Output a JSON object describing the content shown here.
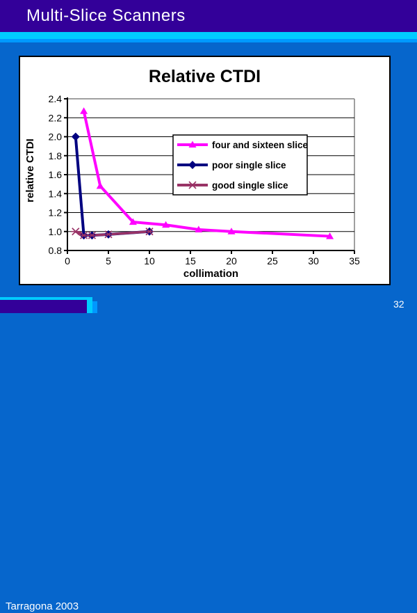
{
  "slide": {
    "title": "Multi-Slice Scanners",
    "footer": "Tarragona 2003",
    "page_number": "32"
  },
  "colors": {
    "background": "#0666CC",
    "title_bar": "#330099",
    "stripe_cyan": "#00CCFF",
    "stripe_blue": "#0099FF",
    "chart_background": "#FFFFFF",
    "gridline": "#000000",
    "plot_border": "#808080"
  },
  "chart_data": {
    "type": "line",
    "title": "Relative CTDI",
    "xlabel": "collimation",
    "ylabel": "relative CTDI",
    "xlim": [
      0,
      35
    ],
    "ylim": [
      0.8,
      2.4
    ],
    "x_ticks": [
      0,
      5,
      10,
      15,
      20,
      25,
      30,
      35
    ],
    "y_ticks": [
      0.8,
      1.0,
      1.2,
      1.4,
      1.6,
      1.8,
      2.0,
      2.2,
      2.4
    ],
    "grid": true,
    "legend_position": "upper-right-inside",
    "series": [
      {
        "name": "four and sixteen slice",
        "color": "#FF00FF",
        "marker": "triangle",
        "points": [
          [
            2,
            2.27
          ],
          [
            4,
            1.48
          ],
          [
            8,
            1.1
          ],
          [
            12,
            1.07
          ],
          [
            16,
            1.02
          ],
          [
            20,
            1.0
          ],
          [
            32,
            0.95
          ]
        ]
      },
      {
        "name": "poor single slice",
        "color": "#000080",
        "marker": "diamond",
        "points": [
          [
            1,
            2.0
          ],
          [
            2,
            0.96
          ],
          [
            3,
            0.96
          ],
          [
            5,
            0.97
          ],
          [
            10,
            1.0
          ]
        ]
      },
      {
        "name": "good single slice",
        "color": "#993366",
        "marker": "star",
        "points": [
          [
            1,
            1.0
          ],
          [
            2,
            0.96
          ],
          [
            3,
            0.96
          ],
          [
            5,
            0.97
          ],
          [
            10,
            1.0
          ]
        ]
      }
    ]
  }
}
